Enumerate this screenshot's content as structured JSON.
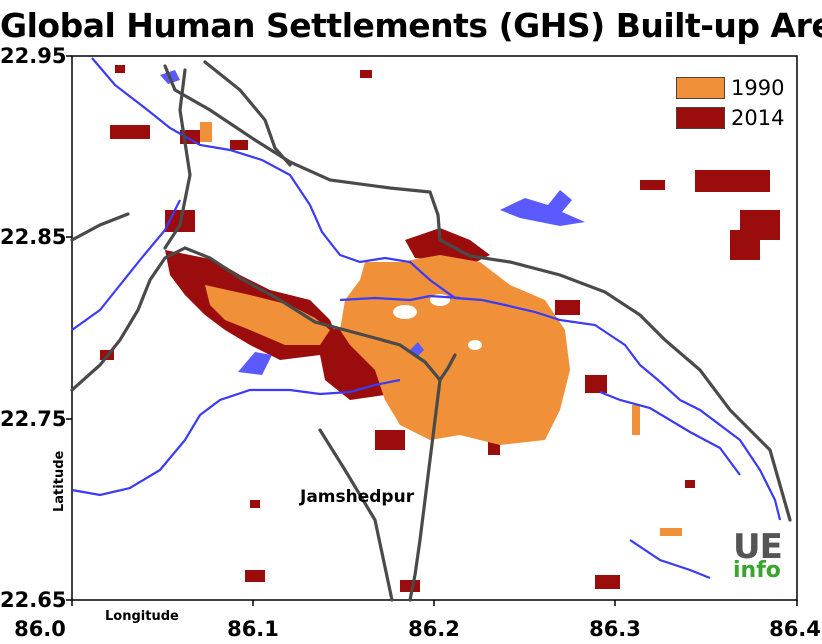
{
  "title": "Global Human Settlements (GHS) Built-up Area",
  "axes": {
    "x_title": "Longitude",
    "y_title": "Latitude",
    "x_ticks": [
      "86.0",
      "86.1",
      "86.2",
      "86.3",
      "86.4"
    ],
    "y_ticks": [
      "22.95",
      "22.85",
      "22.75",
      "22.65"
    ]
  },
  "legend": {
    "items": [
      {
        "label": "1990",
        "color": "#f0913a"
      },
      {
        "label": "2014",
        "color": "#9b0c0c"
      }
    ]
  },
  "place_label": "Jamshedpur",
  "logo": {
    "line1": "UE",
    "line2": "info"
  },
  "colors": {
    "built_1990": "#f0913a",
    "built_2014": "#9b0c0c",
    "water": "#5a5aff",
    "rail": "#4a4a4a",
    "frame": "#000000"
  }
}
